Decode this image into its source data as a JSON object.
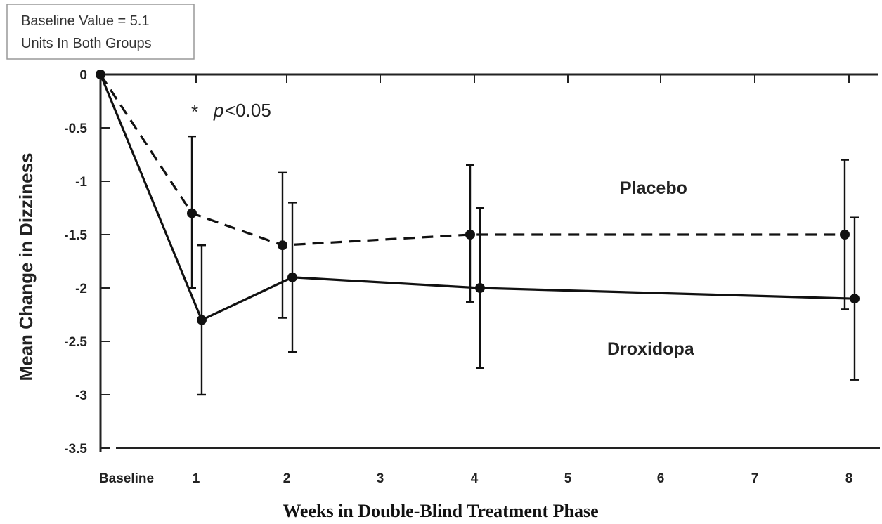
{
  "chart_data": {
    "type": "line",
    "ylabel": "Mean Change in Dizziness",
    "xlabel": "Weeks in Double-Blind Treatment Phase",
    "ylim": [
      -3.5,
      0
    ],
    "yticks": [
      0,
      -0.5,
      -1,
      -1.5,
      -2,
      -2.5,
      -3,
      -3.5
    ],
    "ytick_labels": [
      "0",
      "-0.5",
      "-1",
      "-1.5",
      "-2",
      "-2.5",
      "-3",
      "-3.5"
    ],
    "x_categories": [
      "Baseline",
      "1",
      "2",
      "3",
      "4",
      "5",
      "6",
      "7",
      "8"
    ],
    "x_values": [
      0,
      1,
      2,
      3,
      4,
      5,
      6,
      7,
      8
    ],
    "grid": false,
    "series": [
      {
        "name": "Placebo",
        "style": "dashed",
        "points": [
          {
            "x": 0,
            "y": 0
          },
          {
            "x": 1,
            "y": -1.3,
            "err_low": -2.0,
            "err_high": -0.58
          },
          {
            "x": 2,
            "y": -1.6,
            "err_low": -2.28,
            "err_high": -0.92
          },
          {
            "x": 4,
            "y": -1.5,
            "err_low": -2.13,
            "err_high": -0.85
          },
          {
            "x": 8,
            "y": -1.5,
            "err_low": -2.2,
            "err_high": -0.8
          }
        ]
      },
      {
        "name": "Droxidopa",
        "style": "solid",
        "points": [
          {
            "x": 0,
            "y": 0
          },
          {
            "x": 1,
            "y": -2.3,
            "err_low": -3.0,
            "err_high": -1.6
          },
          {
            "x": 2,
            "y": -1.9,
            "err_low": -2.6,
            "err_high": -1.2
          },
          {
            "x": 4,
            "y": -2.0,
            "err_low": -2.75,
            "err_high": -1.25
          },
          {
            "x": 8,
            "y": -2.1,
            "err_low": -2.86,
            "err_high": -1.34
          }
        ]
      }
    ],
    "annotations": {
      "baseline_box_line1": "Baseline Value = 5.1",
      "baseline_box_line2": "Units In Both Groups",
      "significance_star": "*",
      "significance_p": "p",
      "significance_rest": "<0.05"
    }
  }
}
